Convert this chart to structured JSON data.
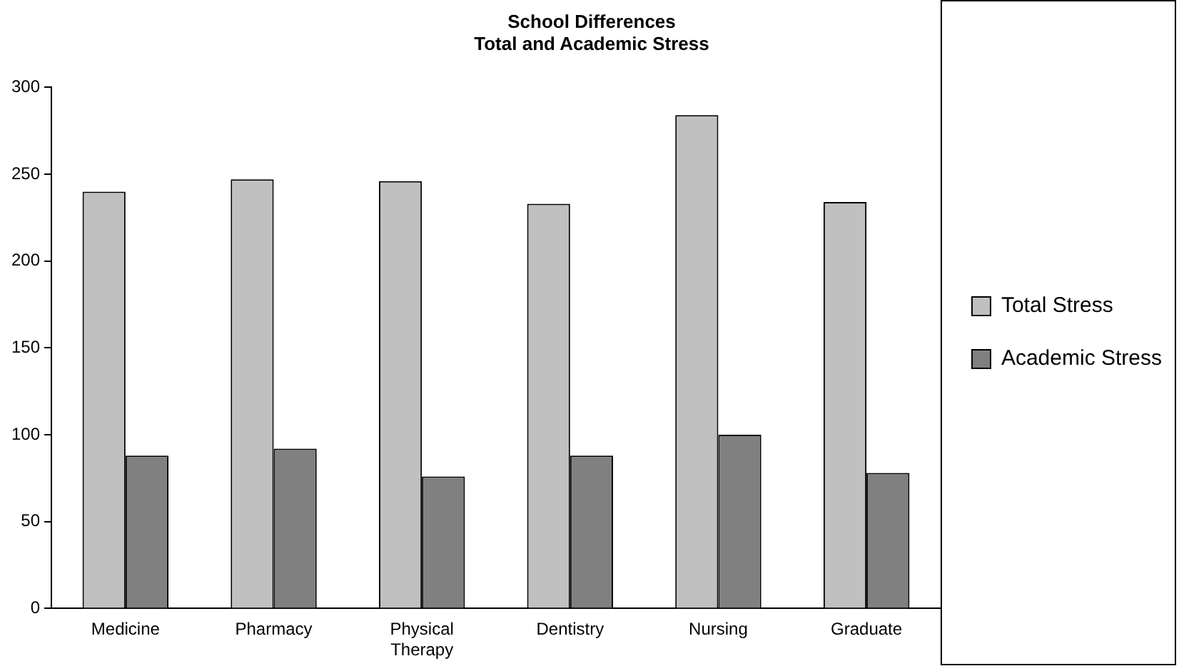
{
  "chart_data": {
    "type": "bar",
    "title": "School Differences\nTotal and Academic Stress",
    "categories": [
      "Medicine",
      "Pharmacy",
      "Physical Therapy",
      "Dentistry",
      "Nursing",
      "Graduate"
    ],
    "series": [
      {
        "name": "Total Stress",
        "color": "#c0c0c0",
        "values": [
          240,
          247,
          246,
          233,
          284,
          234
        ]
      },
      {
        "name": "Academic Stress",
        "color": "#808080",
        "values": [
          88,
          92,
          76,
          88,
          100,
          78
        ]
      }
    ],
    "ylim": [
      0,
      300
    ],
    "yticks": [
      0,
      50,
      100,
      150,
      200,
      250,
      300
    ],
    "grid": false,
    "legend": "right"
  }
}
